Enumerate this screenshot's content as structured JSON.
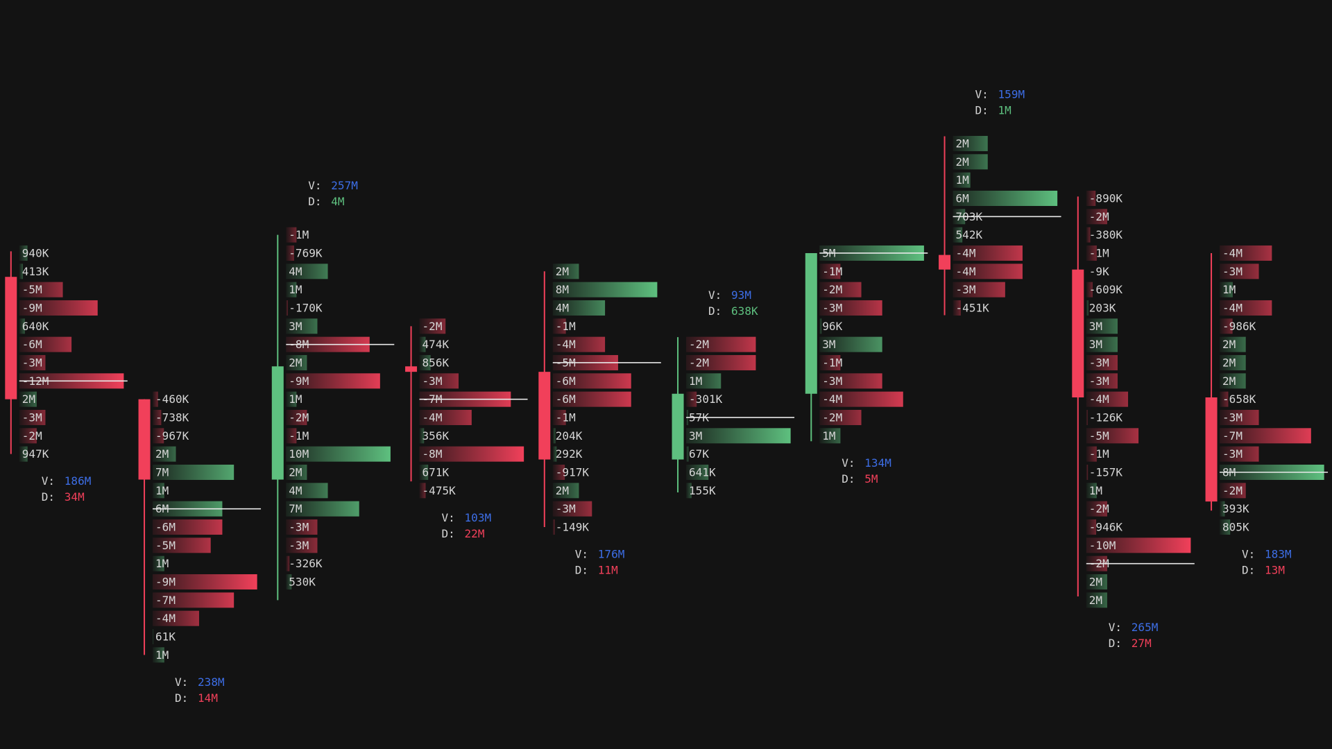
{
  "chart_data": {
    "type": "footprint",
    "ylim": [
      10,
      45
    ],
    "up_color": "#5ec07f",
    "down_color": "#f1405a",
    "volume_color": "#3d6ee6",
    "poc_color": "#e8e8e8",
    "volume_prefix": "V:",
    "delta_prefix": "D:",
    "bars": [
      {
        "top": 34,
        "open": 32.7,
        "high": 34.1,
        "low": 23,
        "close": 26,
        "poc": 7,
        "label_pos": "below",
        "volume": 186000000,
        "volume_label": "186M",
        "delta": -34000000,
        "delta_label": "34M",
        "rows": {
          "values": [
            940000,
            413000,
            -5000000,
            -9000000,
            640000,
            -6000000,
            -3000000,
            -12000000,
            2000000,
            -3000000,
            -2000000,
            947000
          ],
          "value_labels": [
            "940K",
            "413K",
            "-5M",
            "-9M",
            "640K",
            "-6M",
            "-3M",
            "-12M",
            "2M",
            "-3M",
            "-2M",
            "947K"
          ]
        }
      },
      {
        "top": 26,
        "open": 26,
        "high": 26,
        "low": 12,
        "close": 21.6,
        "poc": 6,
        "label_pos": "below",
        "volume": 238000000,
        "volume_label": "238M",
        "delta": -14000000,
        "delta_label": "14M",
        "rows": {
          "values": [
            -460000,
            -738000,
            -967000,
            2000000,
            7000000,
            1000000,
            6000000,
            -6000000,
            -5000000,
            1000000,
            -9000000,
            -7000000,
            -4000000,
            61000,
            1000000
          ],
          "value_labels": [
            "-460K",
            "-738K",
            "-967K",
            "2M",
            "7M",
            "1M",
            "6M",
            "-6M",
            "-5M",
            "1M",
            "-9M",
            "-7M",
            "-4M",
            "61K",
            "1M"
          ]
        }
      },
      {
        "top": 35,
        "open": 21.6,
        "high": 35,
        "low": 15,
        "close": 27.8,
        "poc": 6,
        "label_pos": "above",
        "volume": 257000000,
        "volume_label": "257M",
        "delta": 4000000,
        "delta_label": "4M",
        "rows": {
          "values": [
            -1000000,
            -769000,
            4000000,
            1000000,
            -170000,
            3000000,
            -8000000,
            2000000,
            -9000000,
            1000000,
            -2000000,
            -1000000,
            10000000,
            2000000,
            4000000,
            7000000,
            -3000000,
            -3000000,
            -326000,
            530000
          ],
          "value_labels": [
            "-1M",
            "-769K",
            "4M",
            "1M",
            "-170K",
            "3M",
            "-8M",
            "2M",
            "-9M",
            "1M",
            "-2M",
            "-1M",
            "10M",
            "2M",
            "4M",
            "7M",
            "-3M",
            "-3M",
            "-326K",
            "530K"
          ]
        }
      },
      {
        "top": 30,
        "open": 27.8,
        "high": 30,
        "low": 21.5,
        "close": 27.5,
        "poc": 4,
        "label_pos": "below",
        "volume": 103000000,
        "volume_label": "103M",
        "delta": -22000000,
        "delta_label": "22M",
        "rows": {
          "values": [
            -2000000,
            474000,
            856000,
            -3000000,
            -7000000,
            -4000000,
            356000,
            -8000000,
            671000,
            -475000
          ],
          "value_labels": [
            "-2M",
            "474K",
            "856K",
            "-3M",
            "-7M",
            "-4M",
            "356K",
            "-8M",
            "671K",
            "-475K"
          ]
        }
      },
      {
        "top": 33,
        "open": 27.5,
        "high": 33,
        "low": 19,
        "close": 22.7,
        "poc": 5,
        "label_pos": "below",
        "volume": 176000000,
        "volume_label": "176M",
        "delta": -11000000,
        "delta_label": "11M",
        "rows": {
          "values": [
            2000000,
            8000000,
            4000000,
            -1000000,
            -4000000,
            -5000000,
            -6000000,
            -6000000,
            -1000000,
            204000,
            292000,
            -917000,
            2000000,
            -3000000,
            -149000
          ],
          "value_labels": [
            "2M",
            "8M",
            "4M",
            "-1M",
            "-4M",
            "-5M",
            "-6M",
            "-6M",
            "-1M",
            "204K",
            "292K",
            "-917K",
            "2M",
            "-3M",
            "-149K"
          ]
        }
      },
      {
        "top": 29,
        "open": 22.7,
        "high": 29.4,
        "low": 20.9,
        "close": 26.3,
        "poc": 4,
        "label_pos": "above",
        "volume": 93000000,
        "volume_label": "93M",
        "delta": 638000,
        "delta_label": "638K",
        "rows": {
          "values": [
            -2000000,
            -2000000,
            1000000,
            -301000,
            57000,
            3000000,
            67000,
            641000,
            155000
          ],
          "value_labels": [
            "-2M",
            "-2M",
            "1M",
            "-301K",
            "57K",
            "3M",
            "67K",
            "641K",
            "155K"
          ]
        }
      },
      {
        "top": 34,
        "open": 26.3,
        "high": 34,
        "low": 23.7,
        "close": 34,
        "poc": 0,
        "label_pos": "below",
        "volume": 134000000,
        "volume_label": "134M",
        "delta": -5000000,
        "delta_label": "5M",
        "rows": {
          "values": [
            5000000,
            -1000000,
            -2000000,
            -3000000,
            96000,
            3000000,
            -1000000,
            -3000000,
            -4000000,
            -2000000,
            1000000
          ],
          "value_labels": [
            "5M",
            "-1M",
            "-2M",
            "-3M",
            "96K",
            "3M",
            "-1M",
            "-3M",
            "-4M",
            "-2M",
            "1M"
          ]
        }
      },
      {
        "top": 40,
        "open": 33.9,
        "high": 40.4,
        "low": 30.6,
        "close": 33.1,
        "poc": 4,
        "label_pos": "above",
        "volume": 159000000,
        "volume_label": "159M",
        "delta": 1000000,
        "delta_label": "1M",
        "rows": {
          "values": [
            2000000,
            2000000,
            1000000,
            6000000,
            703000,
            542000,
            -4000000,
            -4000000,
            -3000000,
            -451000
          ],
          "value_labels": [
            "2M",
            "2M",
            "1M",
            "6M",
            "703K",
            "542K",
            "-4M",
            "-4M",
            "-3M",
            "-451K"
          ]
        }
      },
      {
        "top": 37,
        "open": 33.1,
        "high": 37.1,
        "low": 15.2,
        "close": 26.1,
        "poc": 20,
        "label_pos": "below",
        "volume": 265000000,
        "volume_label": "265M",
        "delta": -27000000,
        "delta_label": "27M",
        "rows": {
          "values": [
            -890000,
            -2000000,
            -380000,
            -1000000,
            -9000,
            -609000,
            203000,
            3000000,
            3000000,
            -3000000,
            -3000000,
            -4000000,
            -126000,
            -5000000,
            -1000000,
            -157000,
            1000000,
            -2000000,
            -946000,
            -10000000,
            -2000000,
            2000000,
            2000000
          ],
          "value_labels": [
            "-890K",
            "-2M",
            "-380K",
            "-1M",
            "-9K",
            "-609K",
            "203K",
            "3M",
            "3M",
            "-3M",
            "-3M",
            "-4M",
            "-126K",
            "-5M",
            "-1M",
            "-157K",
            "1M",
            "-2M",
            "-946K",
            "-10M",
            "-2M",
            "2M",
            "2M"
          ]
        }
      },
      {
        "top": 34,
        "open": 26.1,
        "high": 34,
        "low": 19.9,
        "close": 20.4,
        "poc": 12,
        "label_pos": "below",
        "volume": 183000000,
        "volume_label": "183M",
        "delta": -13000000,
        "delta_label": "13M",
        "rows": {
          "values": [
            -4000000,
            -3000000,
            1000000,
            -4000000,
            -986000,
            2000000,
            2000000,
            2000000,
            -658000,
            -3000000,
            -7000000,
            -3000000,
            8000000,
            -2000000,
            393000,
            805000
          ],
          "value_labels": [
            "-4M",
            "-3M",
            "1M",
            "-4M",
            "-986K",
            "2M",
            "2M",
            "2M",
            "-658K",
            "-3M",
            "-7M",
            "-3M",
            "8M",
            "-2M",
            "393K",
            "805K"
          ]
        }
      }
    ]
  }
}
